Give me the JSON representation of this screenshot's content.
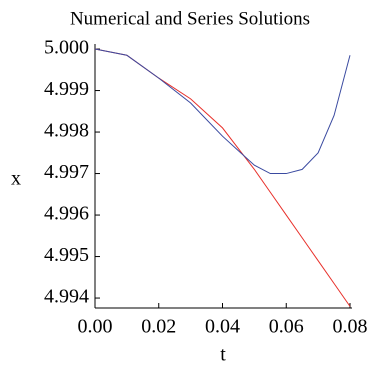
{
  "chart_data": {
    "type": "line",
    "title": "Numerical and Series Solutions",
    "x_label": "t",
    "y_label": "x",
    "x": [
      0,
      0.01,
      0.02,
      0.03,
      0.04,
      0.045,
      0.05,
      0.055,
      0.06,
      0.065,
      0.07,
      0.075,
      0.08
    ],
    "series": [
      {
        "color": "#e8302a",
        "values": [
          5.0,
          4.99985,
          4.9993,
          4.9988,
          4.9981,
          4.9976,
          4.9971,
          4.99655,
          4.996,
          4.99545,
          4.9949,
          4.99435,
          4.9938
        ]
      },
      {
        "color": "#3a4aa0",
        "values": [
          5.0,
          4.99985,
          4.9993,
          4.9987,
          4.9979,
          4.99755,
          4.9972,
          4.997,
          4.997,
          4.9971,
          4.9975,
          4.9984,
          4.99985
        ]
      }
    ],
    "xlim": [
      0,
      0.08
    ],
    "ylim": [
      4.9937,
      5.0001
    ],
    "xticks": [
      {
        "value": 0,
        "label": "0.00"
      },
      0.02,
      0.04,
      0.06,
      0.08
    ],
    "yticks": [
      4.994,
      4.995,
      4.996,
      4.997,
      4.998,
      4.999,
      {
        "value": 5.0,
        "label": "5.000"
      }
    ]
  }
}
